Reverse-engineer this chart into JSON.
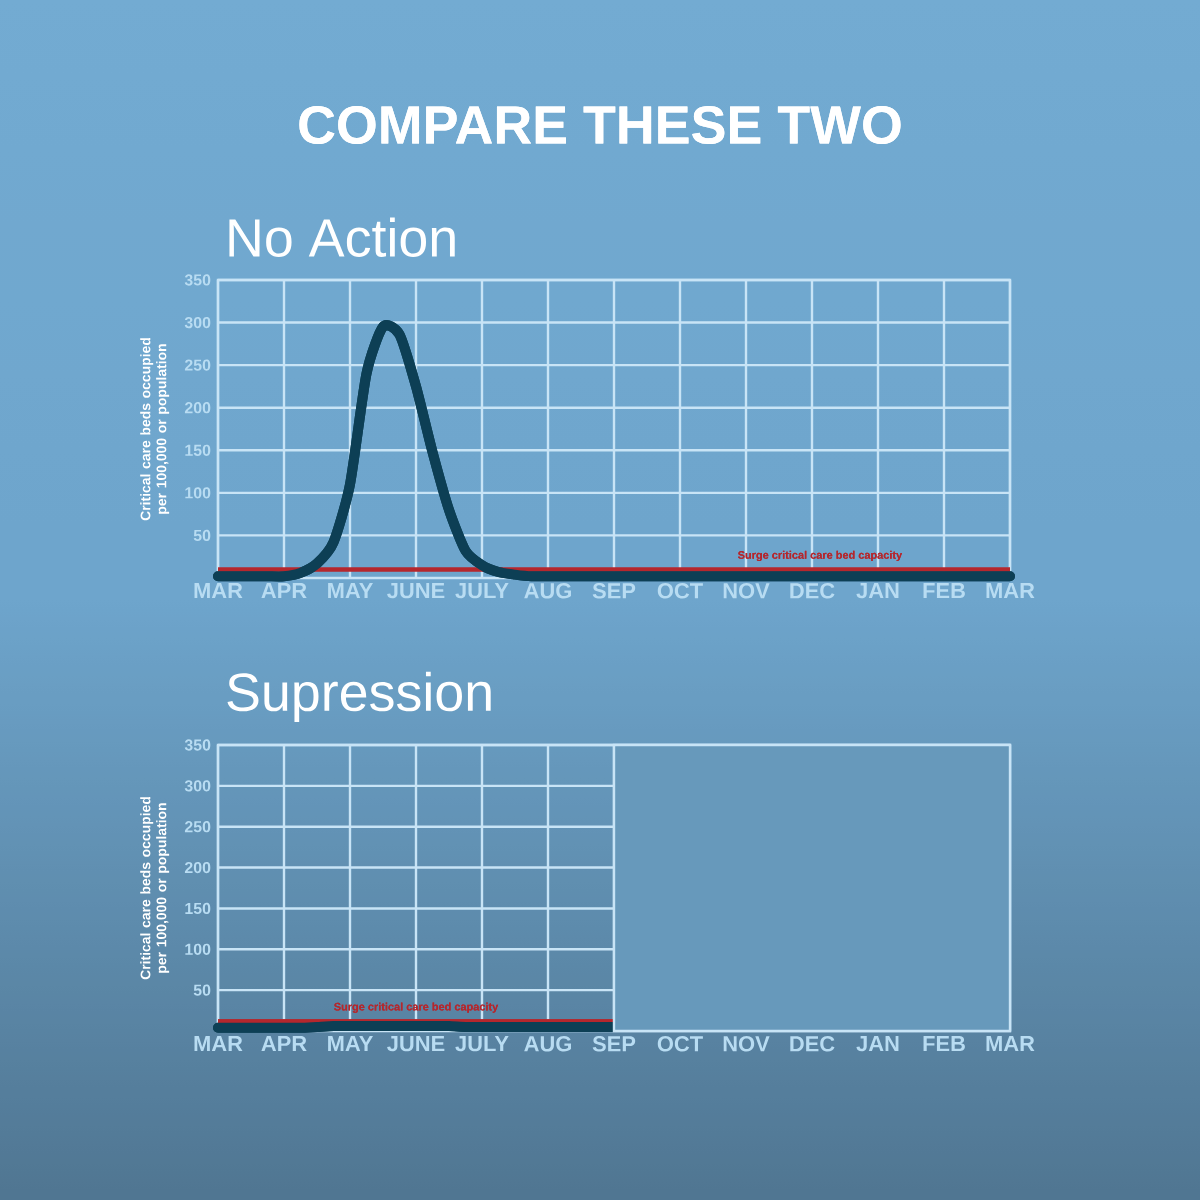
{
  "chart_data": [
    {
      "type": "line",
      "title": "No Action",
      "ylabel": "Critical care beds occupied per 100,000 or population",
      "annotations": [
        "COMPARE THESE TWO"
      ],
      "categories": [
        "MAR",
        null,
        null,
        null,
        "APR",
        null,
        null,
        null,
        "MAY",
        null,
        null,
        null,
        "JUNE",
        null,
        null,
        null,
        "JULY",
        null,
        null,
        null,
        "AUG",
        null,
        null,
        null,
        "SEP",
        null,
        null,
        null,
        "OCT",
        null,
        null,
        null,
        "NOV",
        null,
        null,
        null,
        "DEC",
        null,
        null,
        null,
        "JAN",
        null,
        null,
        null,
        "FEB",
        null,
        null,
        null,
        "MAR"
      ],
      "ylim": [
        0,
        350
      ],
      "yticks": [
        50,
        100,
        150,
        200,
        250,
        300,
        350
      ],
      "grid": true,
      "series": [
        {
          "color": "#0d3f55",
          "values": [
            2,
            2,
            2,
            2,
            2,
            6,
            17,
            42,
            110,
            240,
            295,
            286,
            225,
            148,
            80,
            32,
            15,
            7,
            4,
            2,
            2,
            2,
            2,
            2,
            2,
            2,
            2,
            2,
            2,
            2,
            2,
            2,
            2,
            2,
            2,
            2,
            2,
            2,
            2,
            2,
            2,
            2,
            2,
            2,
            2,
            2,
            2,
            2,
            2
          ]
        }
      ],
      "ref_lines": [
        {
          "axis": "y",
          "value": 10,
          "label": "Surge critical care bed capacity",
          "color": "#b5272d"
        }
      ]
    },
    {
      "type": "line",
      "title": "Supression",
      "ylabel": "Critical care beds occupied per 100,000 or population",
      "categories": [
        "MAR",
        null,
        null,
        null,
        "APR",
        null,
        null,
        null,
        "MAY",
        null,
        null,
        null,
        "JUNE",
        null,
        null,
        null,
        "JULY",
        null,
        null,
        null,
        "AUG",
        null,
        null,
        null,
        "SEP",
        null,
        null,
        null,
        "OCT",
        null,
        null,
        null,
        "NOV",
        null,
        null,
        null,
        "DEC",
        null,
        null,
        null,
        "JAN",
        null,
        null,
        null,
        "FEB",
        null,
        null,
        null,
        "MAR"
      ],
      "ylim": [
        0,
        350
      ],
      "yticks": [
        50,
        100,
        150,
        200,
        250,
        300,
        350
      ],
      "grid": true,
      "series": [
        {
          "color": "#0d3f55",
          "values": [
            4,
            4,
            4,
            4,
            4,
            4,
            5,
            6,
            6,
            6,
            6,
            6,
            6,
            6,
            6,
            5,
            5,
            5,
            5,
            5,
            5,
            5,
            5,
            5,
            5,
            null,
            null,
            null,
            null,
            null,
            null,
            null,
            null,
            null,
            null,
            null,
            null,
            null,
            null,
            null,
            null,
            null,
            null,
            null,
            null,
            null,
            null,
            null,
            null
          ]
        }
      ],
      "ref_lines": [
        {
          "axis": "y",
          "value": 12,
          "label": "Surge critical care bed capacity",
          "color": "#b5272d"
        }
      ]
    }
  ]
}
